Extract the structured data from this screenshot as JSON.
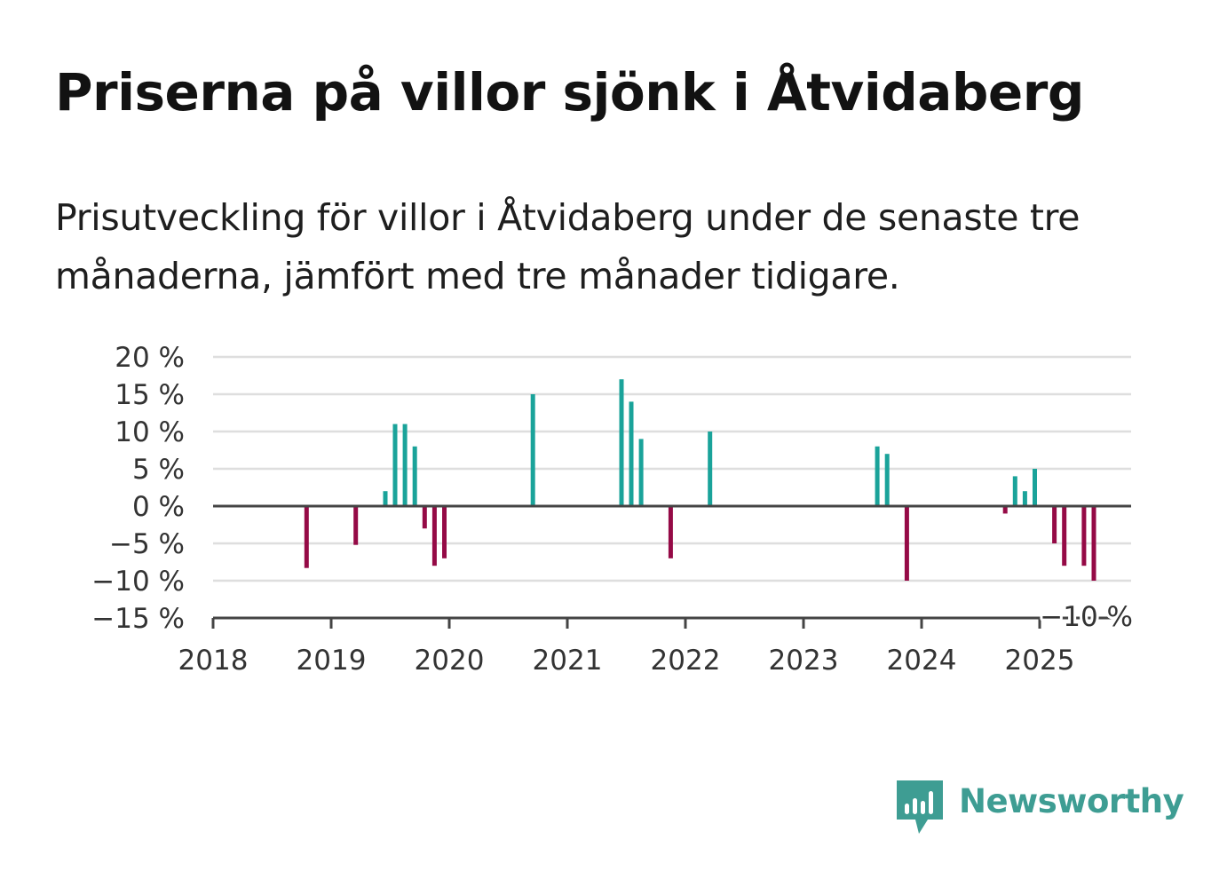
{
  "title": "Priserna på villor sjönk i Åtvidaberg",
  "subtitle": "Prisutveckling för villor i Åtvidaberg under de senaste tre månaderna, jämfört med tre månader tidigare.",
  "brand": {
    "name": "Newsworthy",
    "icon": "newsworthy-bar-chart-icon",
    "color": "#3e9d93"
  },
  "chart_data": {
    "type": "bar",
    "title": "",
    "xlabel": "",
    "ylabel": "",
    "ylim": [
      -15,
      20
    ],
    "xlim": [
      "2018-01",
      "2025-10"
    ],
    "grid": true,
    "yticks": [
      20,
      15,
      10,
      5,
      0,
      -5,
      -10,
      -15
    ],
    "ytick_labels": [
      "20 %",
      "15 %",
      "10 %",
      "5 %",
      "0 %",
      "−5 %",
      "−10 %",
      "−15 %"
    ],
    "xtick_labels": [
      "2018",
      "2019",
      "2020",
      "2021",
      "2022",
      "2023",
      "2024",
      "2025"
    ],
    "colors": {
      "positive": "#1aa39a",
      "negative": "#950a46",
      "grid": "#dedede",
      "axis": "#444444"
    },
    "annotation": {
      "text": "−10 %",
      "date": "2025-06",
      "value": -10
    },
    "x": [
      "2018-10",
      "2019-03",
      "2019-06",
      "2019-07",
      "2019-08",
      "2019-09",
      "2019-10",
      "2019-11",
      "2019-12",
      "2020-09",
      "2021-06",
      "2021-07",
      "2021-08",
      "2021-11",
      "2022-03",
      "2023-08",
      "2023-09",
      "2023-11",
      "2024-09",
      "2024-10",
      "2024-11",
      "2024-12",
      "2025-02",
      "2025-03",
      "2025-05",
      "2025-06"
    ],
    "values": [
      -8.3,
      -5.2,
      2.0,
      11.0,
      11.0,
      8.0,
      -3.0,
      -8.0,
      -7.0,
      15.0,
      17.0,
      14.0,
      9.0,
      -7.0,
      10.0,
      8.0,
      7.0,
      -10.0,
      -1.0,
      4.0,
      2.0,
      5.0,
      -5.0,
      -8.0,
      -8.0,
      -10.0
    ]
  }
}
